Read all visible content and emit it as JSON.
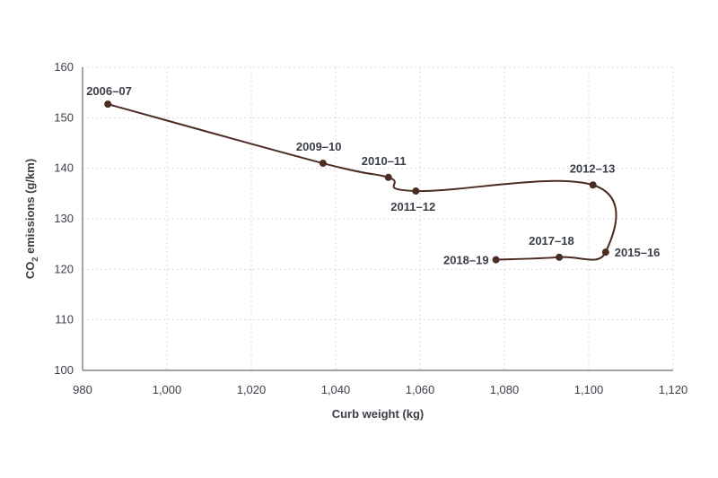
{
  "chart_data": {
    "type": "line",
    "title": "",
    "xlabel": "Curb weight (kg)",
    "ylabel": {
      "base": "CO",
      "subscript": "2",
      "rest": " emissions (g/km)"
    },
    "xlim": [
      980,
      1120
    ],
    "ylim": [
      100,
      160
    ],
    "xticks": [
      980,
      1000,
      1020,
      1040,
      1060,
      1080,
      1100,
      1120
    ],
    "xtick_labels": [
      "980",
      "1,000",
      "1,020",
      "1,040",
      "1,060",
      "1,080",
      "1,100",
      "1,120"
    ],
    "yticks": [
      100,
      110,
      120,
      130,
      140,
      150,
      160
    ],
    "ytick_labels": [
      "100",
      "110",
      "120",
      "130",
      "140",
      "150",
      "160"
    ],
    "grid": true,
    "line_color": "#4a2c22",
    "series": [
      {
        "points": [
          {
            "label": "2006–07",
            "x": 986,
            "y": 152.7
          },
          {
            "label": "2009–10",
            "x": 1037,
            "y": 141.0
          },
          {
            "label": "2010–11",
            "x": 1052.5,
            "y": 138.2
          },
          {
            "label": "2011–12",
            "x": 1059,
            "y": 135.5
          },
          {
            "label": "2012–13",
            "x": 1101,
            "y": 136.7
          },
          {
            "label": "2015–16",
            "x": 1104,
            "y": 123.4
          },
          {
            "label": "2017–18",
            "x": 1093,
            "y": 122.4
          },
          {
            "label": "2018–19",
            "x": 1078,
            "y": 121.9
          }
        ]
      }
    ]
  }
}
